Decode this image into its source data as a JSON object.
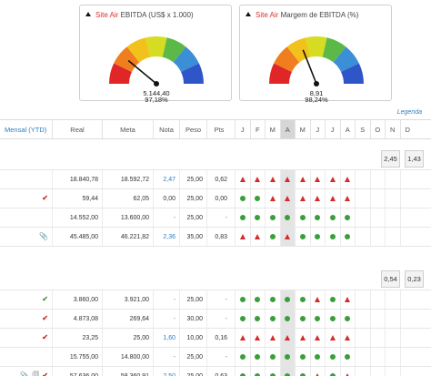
{
  "gauges": [
    {
      "site": "Site Air",
      "metric": "EBITDA (US$ x 1.000)",
      "value": "5.144,40",
      "percent": "97,18%",
      "needle_fraction": 0.22
    },
    {
      "site": "Site Air",
      "metric": "Margem de EBITDA (%)",
      "value": "8,91",
      "percent": "98,24%",
      "needle_fraction": 0.38
    }
  ],
  "gauge_colors": [
    "#e02626",
    "#f07e1e",
    "#f2c21c",
    "#d6dc22",
    "#5cb948",
    "#3a8fd6",
    "#2f56c9"
  ],
  "legenda": "Legenda",
  "header": {
    "name": "Mensal (YTD)",
    "real": "Real",
    "meta": "Meta",
    "nota": "Nota",
    "peso": "Peso",
    "pts": "Pts",
    "months": [
      "J",
      "F",
      "M",
      "A",
      "M",
      "J",
      "J",
      "A",
      "S",
      "O",
      "N",
      "D"
    ],
    "active_month_index": 3
  },
  "summary1": {
    "o_value": "2,45",
    "d_value": "1,43"
  },
  "group1": [
    {
      "icons": [],
      "real": "18.840,78",
      "meta": "18.592,72",
      "nota": "2,47",
      "nota_link": true,
      "peso": "25,00",
      "pts": "0,62",
      "status": [
        "t",
        "t",
        "t",
        "t",
        "t",
        "t",
        "t",
        "t"
      ]
    },
    {
      "icons": [
        "check-red"
      ],
      "real": "59,44",
      "meta": "62,05",
      "nota": "0,00",
      "nota_link": false,
      "peso": "25,00",
      "pts": "0,00",
      "status": [
        "d",
        "d",
        "t",
        "t",
        "t",
        "t",
        "t",
        "t"
      ]
    },
    {
      "icons": [],
      "real": "14.552,00",
      "meta": "13.600,00",
      "nota": "-",
      "nota_link": false,
      "peso": "25,00",
      "pts": "-",
      "status": [
        "d",
        "d",
        "d",
        "d",
        "d",
        "d",
        "d",
        "d"
      ]
    },
    {
      "icons": [
        "clip"
      ],
      "real": "45.485,00",
      "meta": "46.221,82",
      "nota": "2,36",
      "nota_link": true,
      "peso": "35,00",
      "pts": "0,83",
      "status": [
        "t",
        "t",
        "d",
        "t",
        "d",
        "d",
        "d",
        "d"
      ]
    }
  ],
  "summary2": {
    "o_value": "0,54",
    "d_value": "0,23"
  },
  "group2": [
    {
      "icons": [
        "check-green"
      ],
      "real": "3.860,00",
      "meta": "3.921,00",
      "nota": "-",
      "nota_link": false,
      "peso": "25,00",
      "pts": "-",
      "status": [
        "d",
        "d",
        "d",
        "d",
        "d",
        "t",
        "d",
        "t"
      ]
    },
    {
      "icons": [
        "check-red"
      ],
      "real": "4.873,08",
      "meta": "269,64",
      "nota": "-",
      "nota_link": false,
      "peso": "30,00",
      "pts": "-",
      "status": [
        "d",
        "d",
        "d",
        "d",
        "d",
        "d",
        "d",
        "d"
      ]
    },
    {
      "icons": [
        "check-red"
      ],
      "real": "23,25",
      "meta": "25,00",
      "nota": "1,60",
      "nota_link": true,
      "peso": "10,00",
      "pts": "0,16",
      "status": [
        "t",
        "t",
        "t",
        "t",
        "t",
        "t",
        "t",
        "t"
      ]
    },
    {
      "icons": [],
      "real": "15.755,00",
      "meta": "14.800,00",
      "nota": "-",
      "nota_link": false,
      "peso": "25,00",
      "pts": "-",
      "status": [
        "d",
        "d",
        "d",
        "d",
        "d",
        "d",
        "d",
        "d"
      ]
    },
    {
      "icons": [
        "clip",
        "doc",
        "check-red"
      ],
      "real": "57.636,00",
      "meta": "58.360,91",
      "nota": "2,50",
      "nota_link": true,
      "peso": "25,00",
      "pts": "0,63",
      "status": [
        "d",
        "d",
        "d",
        "d",
        "d",
        "t",
        "d",
        "t"
      ]
    }
  ]
}
